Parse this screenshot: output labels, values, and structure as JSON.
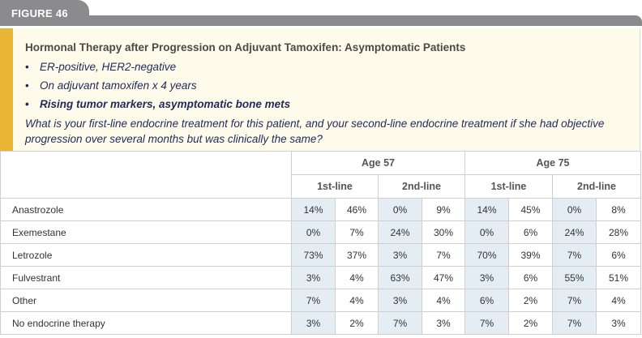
{
  "figure_label": "FIGURE 46",
  "title": "Hormonal Therapy after Progression on Adjuvant Tamoxifen: Asymptomatic Patients",
  "bullets": [
    {
      "text": "ER-positive, HER2-negative",
      "bold": false
    },
    {
      "text": "On adjuvant tamoxifen x 4 years",
      "bold": false
    },
    {
      "text": "Rising tumor markers, asymptomatic bone mets",
      "bold": true
    }
  ],
  "question": "What is your first-line endocrine treatment for this patient, and your second-line endocrine treatment if she had objective progression over several months but was clinically the same?",
  "table": {
    "age_groups": [
      "Age 57",
      "Age 75"
    ],
    "lines": [
      "1st-line",
      "2nd-line",
      "1st-line",
      "2nd-line"
    ],
    "rows": [
      {
        "label": "Anastrozole",
        "values": [
          "14%",
          "46%",
          "0%",
          "9%",
          "14%",
          "45%",
          "0%",
          "8%"
        ]
      },
      {
        "label": "Exemestane",
        "values": [
          "0%",
          "7%",
          "24%",
          "30%",
          "0%",
          "6%",
          "24%",
          "28%"
        ]
      },
      {
        "label": "Letrozole",
        "values": [
          "73%",
          "37%",
          "3%",
          "7%",
          "70%",
          "39%",
          "7%",
          "6%"
        ]
      },
      {
        "label": "Fulvestrant",
        "values": [
          "3%",
          "4%",
          "63%",
          "47%",
          "3%",
          "6%",
          "55%",
          "51%"
        ]
      },
      {
        "label": "Other",
        "values": [
          "7%",
          "4%",
          "3%",
          "4%",
          "6%",
          "2%",
          "7%",
          "4%"
        ]
      },
      {
        "label": "No endocrine therapy",
        "values": [
          "3%",
          "2%",
          "7%",
          "3%",
          "7%",
          "2%",
          "7%",
          "3%"
        ]
      }
    ]
  },
  "colors": {
    "tab": "#8b8b8d",
    "accent": "#e8b535",
    "header_bg": "#fffbea",
    "cell_shade": "#e4edf3"
  }
}
